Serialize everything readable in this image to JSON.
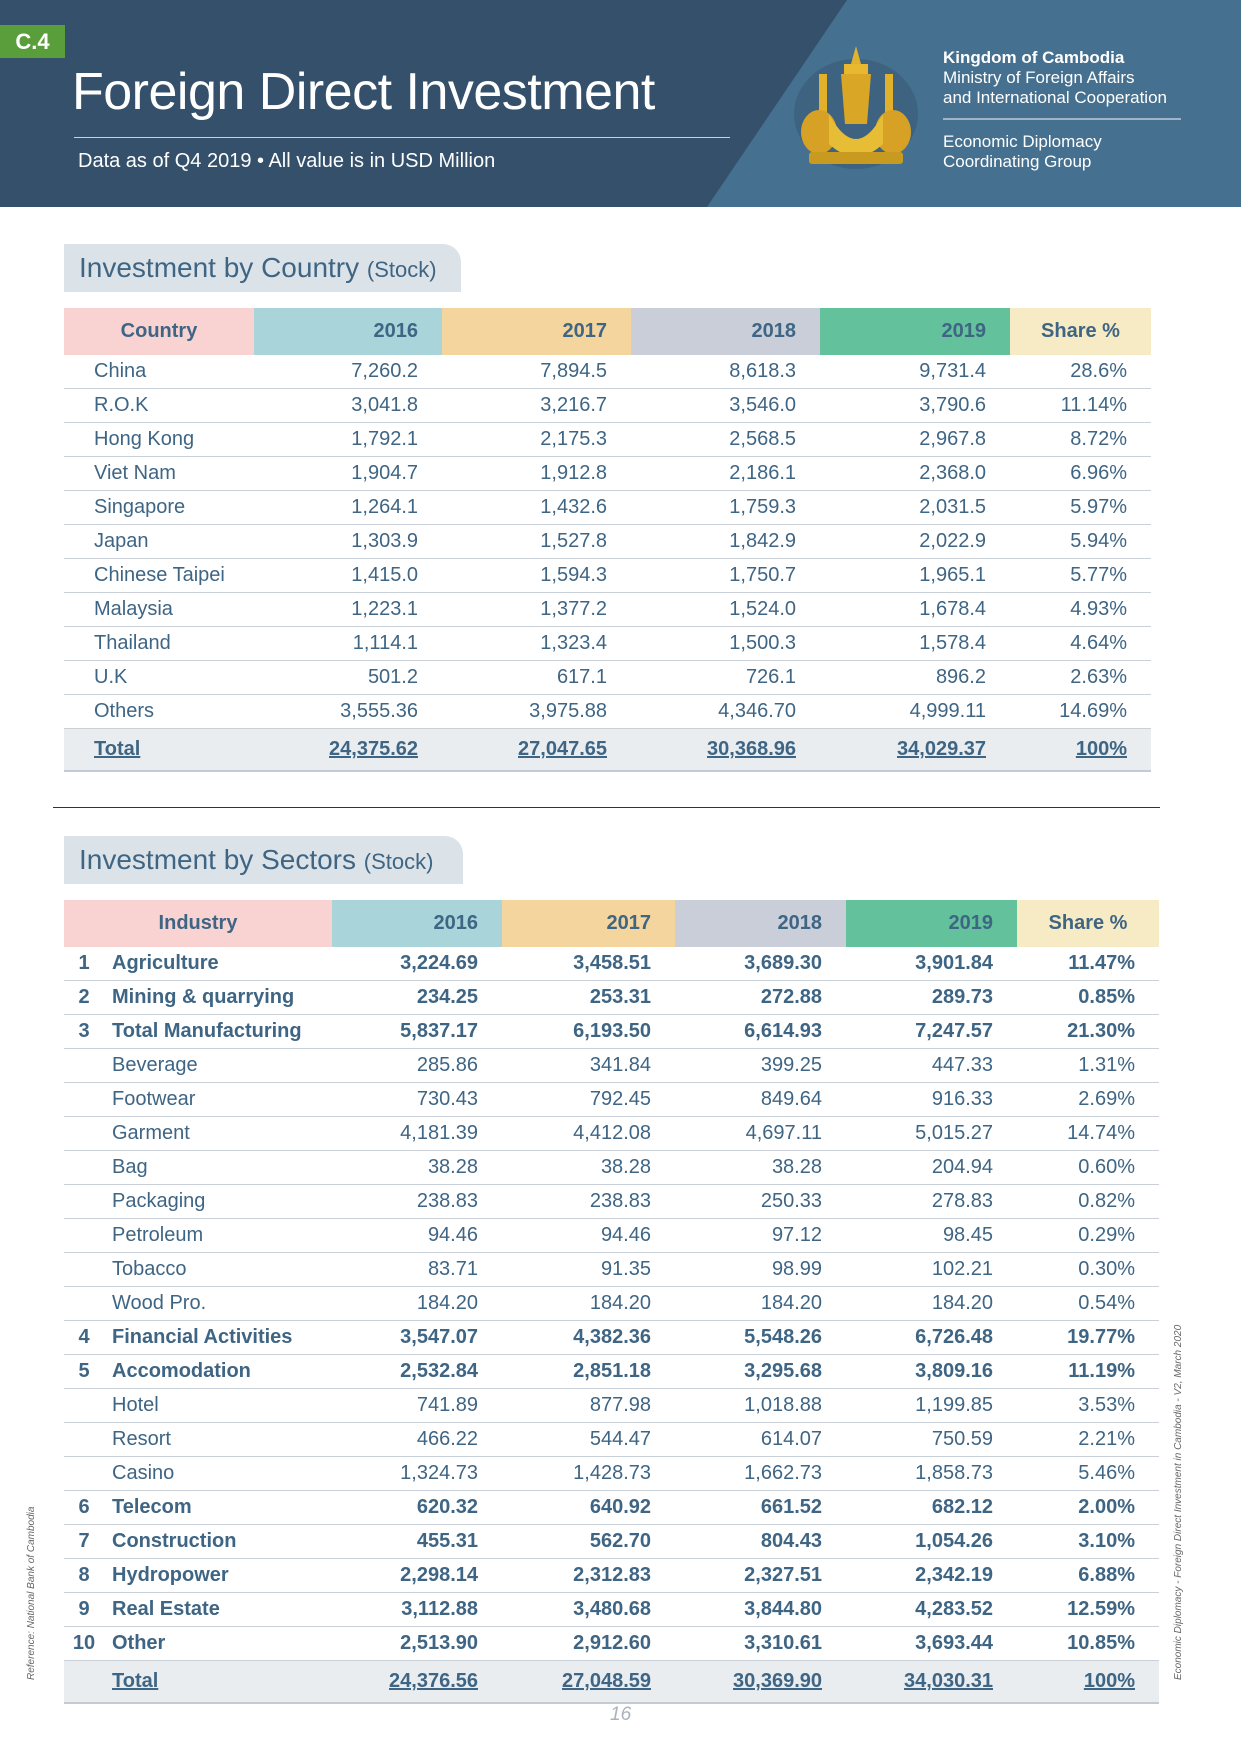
{
  "header": {
    "badge": "C.4",
    "title": "Foreign Direct Investment",
    "subtitle": "Data as of Q4 2019  • All value is in USD Million",
    "org_name": "Kingdom of Cambodia",
    "ministry_line1": "Ministry of Foreign Affairs",
    "ministry_line2": "and International Cooperation",
    "group_line1": "Economic Diplomacy",
    "group_line2": "Coordinating Group",
    "emblem": "royal-arms-of-cambodia"
  },
  "colors": {
    "header_dark": "#34506b",
    "header_light": "#45708f",
    "badge": "#5a9e3c",
    "text": "#3f6584"
  },
  "country_section": {
    "title": "Investment by Country",
    "title_suffix": "(Stock)",
    "headers": [
      "Country",
      "2016",
      "2017",
      "2018",
      "2019",
      "Share %"
    ],
    "rows": [
      [
        "China",
        "7,260.2",
        "7,894.5",
        "8,618.3",
        "9,731.4",
        "28.6%"
      ],
      [
        "R.O.K",
        "3,041.8",
        "3,216.7",
        "3,546.0",
        "3,790.6",
        "11.14%"
      ],
      [
        "Hong Kong",
        "1,792.1",
        "2,175.3",
        "2,568.5",
        "2,967.8",
        "8.72%"
      ],
      [
        "Viet Nam",
        "1,904.7",
        "1,912.8",
        "2,186.1",
        "2,368.0",
        "6.96%"
      ],
      [
        "Singapore",
        "1,264.1",
        "1,432.6",
        "1,759.3",
        "2,031.5",
        "5.97%"
      ],
      [
        "Japan",
        "1,303.9",
        "1,527.8",
        "1,842.9",
        "2,022.9",
        "5.94%"
      ],
      [
        "Chinese Taipei",
        "1,415.0",
        "1,594.3",
        "1,750.7",
        "1,965.1",
        "5.77%"
      ],
      [
        "Malaysia",
        "1,223.1",
        "1,377.2",
        "1,524.0",
        "1,678.4",
        "4.93%"
      ],
      [
        "Thailand",
        "1,114.1",
        "1,323.4",
        "1,500.3",
        "1,578.4",
        "4.64%"
      ],
      [
        "U.K",
        "501.2",
        "617.1",
        "726.1",
        "896.2",
        "2.63%"
      ],
      [
        "Others",
        "3,555.36",
        "3,975.88",
        "4,346.70",
        "4,999.11",
        "14.69%"
      ]
    ],
    "total": [
      "Total",
      "24,375.62",
      "27,047.65",
      "30,368.96",
      "34,029.37",
      "100%"
    ]
  },
  "sector_section": {
    "title": "Investment by Sectors",
    "title_suffix": "(Stock)",
    "headers": [
      "Industry",
      "2016",
      "2017",
      "2018",
      "2019",
      "Share %"
    ],
    "rows": [
      {
        "no": "1",
        "name": "Agriculture",
        "values": [
          "3,224.69",
          "3,458.51",
          "3,689.30",
          "3,901.84",
          "11.47%"
        ],
        "bold": true
      },
      {
        "no": "2",
        "name": "Mining & quarrying",
        "values": [
          "234.25",
          "253.31",
          "272.88",
          "289.73",
          "0.85%"
        ],
        "bold": true
      },
      {
        "no": "3",
        "name": "Total Manufacturing",
        "values": [
          "5,837.17",
          "6,193.50",
          "6,614.93",
          "7,247.57",
          "21.30%"
        ],
        "bold": true
      },
      {
        "no": "",
        "name": "Beverage",
        "values": [
          "285.86",
          "341.84",
          "399.25",
          "447.33",
          "1.31%"
        ],
        "bold": false
      },
      {
        "no": "",
        "name": "Footwear",
        "values": [
          "730.43",
          "792.45",
          "849.64",
          "916.33",
          "2.69%"
        ],
        "bold": false
      },
      {
        "no": "",
        "name": "Garment",
        "values": [
          "4,181.39",
          "4,412.08",
          "4,697.11",
          "5,015.27",
          "14.74%"
        ],
        "bold": false
      },
      {
        "no": "",
        "name": "Bag",
        "values": [
          "38.28",
          "38.28",
          "38.28",
          "204.94",
          "0.60%"
        ],
        "bold": false
      },
      {
        "no": "",
        "name": "Packaging",
        "values": [
          "238.83",
          "238.83",
          "250.33",
          "278.83",
          "0.82%"
        ],
        "bold": false
      },
      {
        "no": "",
        "name": "Petroleum",
        "values": [
          "94.46",
          "94.46",
          "97.12",
          "98.45",
          "0.29%"
        ],
        "bold": false
      },
      {
        "no": "",
        "name": "Tobacco",
        "values": [
          "83.71",
          "91.35",
          "98.99",
          "102.21",
          "0.30%"
        ],
        "bold": false
      },
      {
        "no": "",
        "name": "Wood Pro.",
        "values": [
          "184.20",
          "184.20",
          "184.20",
          "184.20",
          "0.54%"
        ],
        "bold": false
      },
      {
        "no": "4",
        "name": "Financial Activities",
        "values": [
          "3,547.07",
          "4,382.36",
          "5,548.26",
          "6,726.48",
          "19.77%"
        ],
        "bold": true
      },
      {
        "no": "5",
        "name": "Accomodation",
        "values": [
          "2,532.84",
          "2,851.18",
          "3,295.68",
          "3,809.16",
          "11.19%"
        ],
        "bold": true
      },
      {
        "no": "",
        "name": "Hotel",
        "values": [
          "741.89",
          "877.98",
          "1,018.88",
          "1,199.85",
          "3.53%"
        ],
        "bold": false
      },
      {
        "no": "",
        "name": "Resort",
        "values": [
          "466.22",
          "544.47",
          "614.07",
          "750.59",
          "2.21%"
        ],
        "bold": false
      },
      {
        "no": "",
        "name": "Casino",
        "values": [
          "1,324.73",
          "1,428.73",
          "1,662.73",
          "1,858.73",
          "5.46%"
        ],
        "bold": false
      },
      {
        "no": "6",
        "name": "Telecom",
        "values": [
          "620.32",
          "640.92",
          "661.52",
          "682.12",
          "2.00%"
        ],
        "bold": true
      },
      {
        "no": "7",
        "name": "Construction",
        "values": [
          "455.31",
          "562.70",
          "804.43",
          "1,054.26",
          "3.10%"
        ],
        "bold": true
      },
      {
        "no": "8",
        "name": "Hydropower",
        "values": [
          "2,298.14",
          "2,312.83",
          "2,327.51",
          "2,342.19",
          "6.88%"
        ],
        "bold": true
      },
      {
        "no": "9",
        "name": "Real Estate",
        "values": [
          "3,112.88",
          "3,480.68",
          "3,844.80",
          "4,283.52",
          "12.59%"
        ],
        "bold": true
      },
      {
        "no": "10",
        "name": "Other",
        "values": [
          "2,513.90",
          "2,912.60",
          "3,310.61",
          "3,693.44",
          "10.85%"
        ],
        "bold": true
      }
    ],
    "total": {
      "name": "Total",
      "values": [
        "24,376.56",
        "27,048.59",
        "30,369.90",
        "34,030.31",
        "100%"
      ]
    }
  },
  "footer": {
    "page_number": "16",
    "reference": "Reference: National Bank of Cambodia",
    "side_note": "Economic Diplomacy - Foreign Direct Investment in Cambodia - V2, March 2020"
  }
}
